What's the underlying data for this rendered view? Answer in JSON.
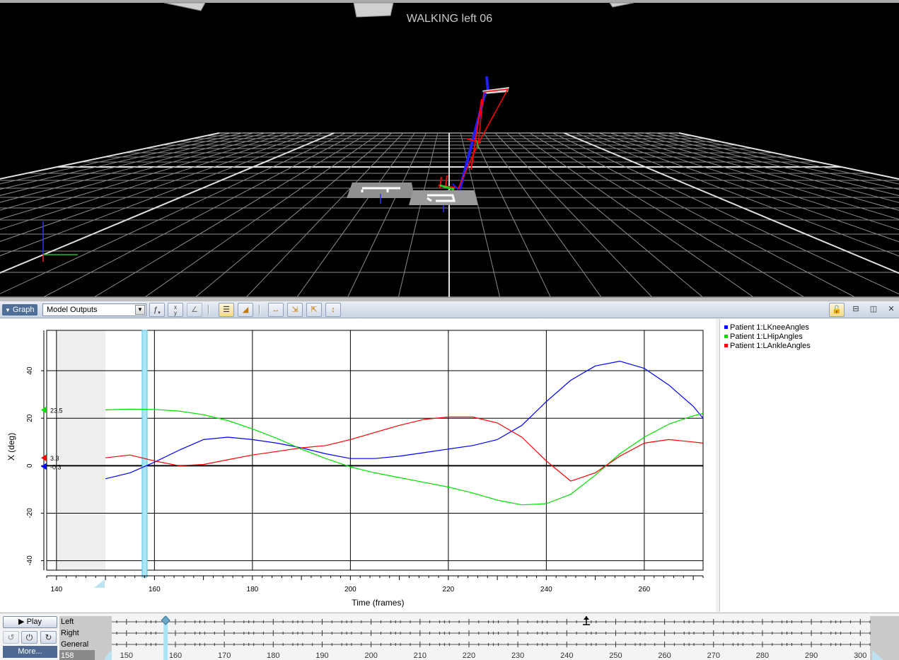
{
  "viewport": {
    "title": "WALKING left 06",
    "colors": {
      "background": "#000000",
      "grid": "#ffffff",
      "plate": "#9a9a9a"
    },
    "force_plates": [
      "1",
      "2"
    ]
  },
  "toolbar": {
    "panel_label": "Graph",
    "output_select_value": "Model Outputs",
    "buttons": [
      "function-icon",
      "xyz-axes-icon",
      "angle-icon",
      "list-view-icon",
      "paint-icon",
      "fit-horizontal-icon",
      "zoom-in-icon",
      "zoom-out-icon",
      "fit-vertical-icon",
      "lock-icon",
      "split-horizontal-icon",
      "split-vertical-icon",
      "close-icon"
    ]
  },
  "chart_data": {
    "type": "line",
    "xlabel": "Time (frames)",
    "ylabel": "X (deg)",
    "xlim": [
      138,
      272
    ],
    "ylim": [
      -44,
      57
    ],
    "x_ticks": [
      140,
      160,
      180,
      200,
      220,
      240,
      260
    ],
    "y_ticks": [
      -40,
      -20,
      0,
      20,
      40
    ],
    "grid": true,
    "legend_position": "right panel",
    "current_frame": 158,
    "data_start_frame": 150,
    "series": [
      {
        "name": "Patient 1:LKneeAngles",
        "color": "#0000ff",
        "x": [
          150,
          155,
          160,
          165,
          170,
          175,
          180,
          185,
          190,
          195,
          200,
          205,
          210,
          215,
          220,
          225,
          230,
          235,
          240,
          245,
          250,
          255,
          260,
          265,
          270,
          272
        ],
        "y": [
          -5.5,
          -3,
          1.5,
          6.5,
          11,
          12,
          11,
          9.5,
          7.5,
          5,
          3,
          3,
          4,
          5.5,
          7,
          8.5,
          11,
          17,
          27,
          36,
          42,
          44,
          41,
          34,
          25,
          20
        ]
      },
      {
        "name": "Patient 1:LHipAngles",
        "color": "#00e000",
        "x": [
          150,
          155,
          160,
          165,
          170,
          175,
          180,
          185,
          190,
          195,
          200,
          205,
          210,
          215,
          220,
          225,
          230,
          235,
          240,
          245,
          250,
          255,
          260,
          265,
          270,
          272
        ],
        "y": [
          23.5,
          23.8,
          23.7,
          23,
          21.5,
          19,
          15.5,
          11.5,
          7,
          3,
          -0.5,
          -3,
          -5,
          -7,
          -9,
          -11.5,
          -14.5,
          -16.5,
          -16,
          -12,
          -4,
          5,
          12,
          17.5,
          21,
          22
        ]
      },
      {
        "name": "Patient 1:LAnkleAngles",
        "color": "#ff0000",
        "x": [
          150,
          155,
          160,
          165,
          170,
          175,
          180,
          185,
          190,
          195,
          200,
          205,
          210,
          215,
          220,
          225,
          230,
          235,
          240,
          245,
          250,
          255,
          260,
          265,
          270,
          272
        ],
        "y": [
          3.3,
          4.5,
          2,
          0,
          0.5,
          2.5,
          4.5,
          6,
          7.5,
          8.5,
          11,
          14,
          17,
          19.5,
          20.5,
          20.5,
          18,
          12,
          2,
          -6.5,
          -3,
          4,
          9.5,
          11,
          10,
          9.5
        ]
      }
    ],
    "markers": [
      {
        "label": "23.5",
        "value": 23.5,
        "color": "#00e000"
      },
      {
        "label": "3.3",
        "value": 3.3,
        "color": "#ff0000"
      },
      {
        "label": "-0.3",
        "value": -0.3,
        "color": "#0000ff"
      }
    ]
  },
  "timeline": {
    "play_label": "Play",
    "more_label": "More...",
    "tracks": [
      "Left",
      "Right",
      "General"
    ],
    "current_frame": "158",
    "range": [
      148,
      303
    ],
    "ticks": [
      150,
      160,
      170,
      180,
      190,
      200,
      210,
      220,
      230,
      240,
      250,
      260,
      270,
      280,
      290,
      300
    ],
    "event_frame": 244
  }
}
